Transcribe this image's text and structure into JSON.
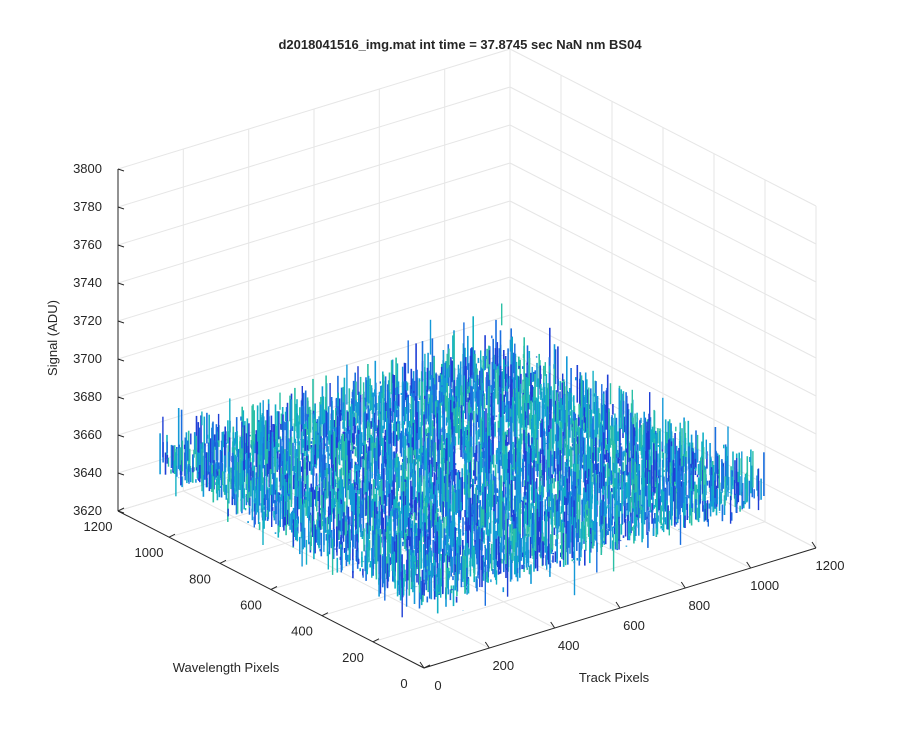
{
  "chart_data": {
    "type": "surface",
    "title": "d2018041516_img.mat int time = 37.8745 sec  NaN nm BS04",
    "xlabel": "Track Pixels",
    "ylabel": "Wavelength Pixels",
    "zlabel": "Signal (ADU)",
    "xlim": [
      0,
      1200
    ],
    "ylim": [
      0,
      1200
    ],
    "zlim": [
      3620,
      3800
    ],
    "x_ticks": [
      0,
      200,
      400,
      600,
      800,
      1000,
      1200
    ],
    "y_ticks": [
      0,
      200,
      400,
      600,
      800,
      1000,
      1200
    ],
    "z_ticks": [
      3620,
      3640,
      3660,
      3680,
      3700,
      3720,
      3740,
      3760,
      3780,
      3800
    ],
    "x_tick_labels": [
      "0",
      "200",
      "400",
      "600",
      "800",
      "1000",
      "1200"
    ],
    "y_tick_labels": [
      "0",
      "200",
      "400",
      "600",
      "800",
      "1000",
      "1200"
    ],
    "z_tick_labels": [
      "3620",
      "3640",
      "3660",
      "3680",
      "3700",
      "3720",
      "3740",
      "3760",
      "3780",
      "3800"
    ],
    "data_extent": {
      "x": [
        0,
        1024
      ],
      "y": [
        0,
        1024
      ]
    },
    "mean_signal": 3662,
    "noise_range": [
      3628,
      3742
    ],
    "grid": true,
    "colormap": [
      "#1f3fd6",
      "#1a6fe0",
      "#1499d8",
      "#12b0c4",
      "#2cc0a6"
    ]
  }
}
